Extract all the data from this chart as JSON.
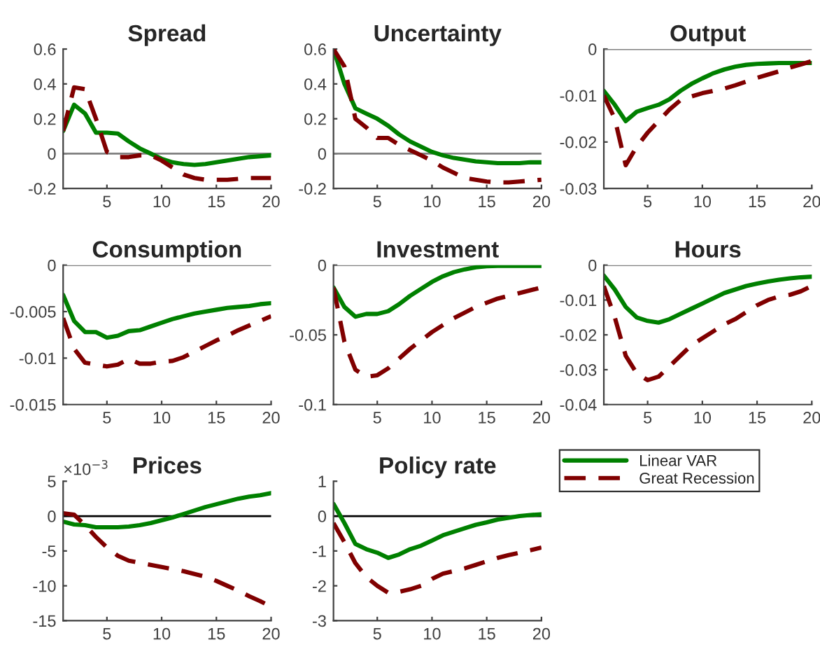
{
  "chart_data": [
    {
      "type": "line",
      "title": "Spread",
      "x": [
        1,
        2,
        3,
        4,
        5,
        6,
        7,
        8,
        9,
        10,
        11,
        12,
        13,
        14,
        15,
        16,
        17,
        18,
        19,
        20
      ],
      "xlim": [
        1,
        20
      ],
      "xticks": [
        5,
        10,
        15,
        20
      ],
      "ylim": [
        -0.2,
        0.6
      ],
      "yticks": [
        -0.2,
        0,
        0.2,
        0.4,
        0.6
      ],
      "ref_lines": [
        {
          "axis": "y",
          "value": 0,
          "color": "#808080"
        }
      ],
      "series": [
        {
          "color": "#008000",
          "line_style": "solid",
          "values": [
            0.13,
            0.28,
            0.23,
            0.12,
            0.12,
            0.115,
            0.07,
            0.03,
            0.0,
            -0.03,
            -0.05,
            -0.06,
            -0.065,
            -0.06,
            -0.05,
            -0.04,
            -0.03,
            -0.02,
            -0.015,
            -0.01
          ]
        },
        {
          "color": "#800000",
          "line_style": "dashed",
          "values": [
            0.13,
            0.38,
            0.37,
            0.2,
            0.01,
            -0.02,
            -0.02,
            -0.01,
            -0.01,
            -0.04,
            -0.08,
            -0.12,
            -0.14,
            -0.15,
            -0.15,
            -0.15,
            -0.145,
            -0.14,
            -0.14,
            -0.14
          ]
        }
      ]
    },
    {
      "type": "line",
      "title": "Uncertainty",
      "x": [
        1,
        2,
        3,
        4,
        5,
        6,
        7,
        8,
        9,
        10,
        11,
        12,
        13,
        14,
        15,
        16,
        17,
        18,
        19,
        20
      ],
      "xlim": [
        1,
        20
      ],
      "xticks": [
        5,
        10,
        15,
        20
      ],
      "ylim": [
        -0.2,
        0.6
      ],
      "yticks": [
        -0.2,
        0,
        0.2,
        0.4,
        0.6
      ],
      "ref_lines": [
        {
          "axis": "y",
          "value": 0,
          "color": "#808080"
        }
      ],
      "series": [
        {
          "color": "#008000",
          "line_style": "solid",
          "values": [
            0.6,
            0.4,
            0.26,
            0.23,
            0.2,
            0.16,
            0.11,
            0.07,
            0.04,
            0.01,
            -0.01,
            -0.025,
            -0.035,
            -0.045,
            -0.05,
            -0.055,
            -0.055,
            -0.055,
            -0.05,
            -0.05
          ]
        },
        {
          "color": "#800000",
          "line_style": "dashed",
          "values": [
            0.6,
            0.5,
            0.2,
            0.15,
            0.09,
            0.09,
            0.05,
            0.02,
            -0.01,
            -0.04,
            -0.08,
            -0.11,
            -0.14,
            -0.15,
            -0.16,
            -0.165,
            -0.165,
            -0.16,
            -0.155,
            -0.15
          ]
        }
      ]
    },
    {
      "type": "line",
      "title": "Output",
      "x": [
        1,
        2,
        3,
        4,
        5,
        6,
        7,
        8,
        9,
        10,
        11,
        12,
        13,
        14,
        15,
        16,
        17,
        18,
        19,
        20
      ],
      "xlim": [
        1,
        20
      ],
      "xticks": [
        5,
        10,
        15,
        20
      ],
      "ylim": [
        -0.03,
        0
      ],
      "yticks": [
        -0.03,
        -0.02,
        -0.01,
        0
      ],
      "ref_lines": [
        {
          "axis": "y",
          "value": 0,
          "color": "#808080"
        }
      ],
      "series": [
        {
          "color": "#008000",
          "line_style": "solid",
          "values": [
            -0.009,
            -0.012,
            -0.0155,
            -0.0135,
            -0.0127,
            -0.012,
            -0.0108,
            -0.009,
            -0.0075,
            -0.0063,
            -0.0052,
            -0.0044,
            -0.0038,
            -0.0034,
            -0.0032,
            -0.0031,
            -0.003,
            -0.003,
            -0.003,
            -0.003
          ]
        },
        {
          "color": "#800000",
          "line_style": "dashed",
          "values": [
            -0.01,
            -0.015,
            -0.025,
            -0.021,
            -0.018,
            -0.0155,
            -0.013,
            -0.011,
            -0.0102,
            -0.0095,
            -0.009,
            -0.0085,
            -0.0078,
            -0.007,
            -0.0062,
            -0.0055,
            -0.0048,
            -0.004,
            -0.0033,
            -0.0026
          ]
        }
      ]
    },
    {
      "type": "line",
      "title": "Consumption",
      "x": [
        1,
        2,
        3,
        4,
        5,
        6,
        7,
        8,
        9,
        10,
        11,
        12,
        13,
        14,
        15,
        16,
        17,
        18,
        19,
        20
      ],
      "xlim": [
        1,
        20
      ],
      "xticks": [
        5,
        10,
        15,
        20
      ],
      "ylim": [
        -0.015,
        0
      ],
      "yticks": [
        -0.015,
        -0.01,
        -0.005,
        0
      ],
      "ref_lines": [
        {
          "axis": "y",
          "value": 0,
          "color": "#808080"
        }
      ],
      "series": [
        {
          "color": "#008000",
          "line_style": "solid",
          "values": [
            -0.0032,
            -0.006,
            -0.0072,
            -0.0072,
            -0.0078,
            -0.0076,
            -0.0071,
            -0.007,
            -0.0066,
            -0.0062,
            -0.0058,
            -0.0055,
            -0.0052,
            -0.005,
            -0.0048,
            -0.0046,
            -0.0045,
            -0.0044,
            -0.0042,
            -0.0041
          ]
        },
        {
          "color": "#800000",
          "line_style": "dashed",
          "values": [
            -0.0057,
            -0.009,
            -0.0105,
            -0.0107,
            -0.0109,
            -0.0107,
            -0.0101,
            -0.0106,
            -0.0106,
            -0.0104,
            -0.0103,
            -0.0099,
            -0.0093,
            -0.0087,
            -0.0081,
            -0.0076,
            -0.007,
            -0.0065,
            -0.006,
            -0.0055
          ]
        }
      ]
    },
    {
      "type": "line",
      "title": "Investment",
      "x": [
        1,
        2,
        3,
        4,
        5,
        6,
        7,
        8,
        9,
        10,
        11,
        12,
        13,
        14,
        15,
        16,
        17,
        18,
        19,
        20
      ],
      "xlim": [
        1,
        20
      ],
      "xticks": [
        5,
        10,
        15,
        20
      ],
      "ylim": [
        -0.1,
        0
      ],
      "yticks": [
        -0.1,
        -0.05,
        0
      ],
      "ref_lines": [
        {
          "axis": "y",
          "value": 0,
          "color": "#808080"
        }
      ],
      "series": [
        {
          "color": "#008000",
          "line_style": "solid",
          "values": [
            -0.016,
            -0.03,
            -0.037,
            -0.035,
            -0.035,
            -0.033,
            -0.028,
            -0.022,
            -0.017,
            -0.012,
            -0.008,
            -0.005,
            -0.003,
            -0.0015,
            -0.0008,
            -0.0005,
            -0.0005,
            -0.0005,
            -0.0005,
            -0.0005
          ]
        },
        {
          "color": "#800000",
          "line_style": "dashed",
          "values": [
            -0.016,
            -0.055,
            -0.075,
            -0.08,
            -0.079,
            -0.074,
            -0.067,
            -0.06,
            -0.054,
            -0.048,
            -0.043,
            -0.038,
            -0.034,
            -0.03,
            -0.027,
            -0.024,
            -0.022,
            -0.02,
            -0.018,
            -0.016
          ]
        }
      ]
    },
    {
      "type": "line",
      "title": "Hours",
      "x": [
        1,
        2,
        3,
        4,
        5,
        6,
        7,
        8,
        9,
        10,
        11,
        12,
        13,
        14,
        15,
        16,
        17,
        18,
        19,
        20
      ],
      "xlim": [
        1,
        20
      ],
      "xticks": [
        5,
        10,
        15,
        20
      ],
      "ylim": [
        -0.04,
        0
      ],
      "yticks": [
        -0.04,
        -0.03,
        -0.02,
        -0.01,
        0
      ],
      "ref_lines": [
        {
          "axis": "y",
          "value": 0,
          "color": "#808080"
        }
      ],
      "series": [
        {
          "color": "#008000",
          "line_style": "solid",
          "values": [
            -0.003,
            -0.007,
            -0.012,
            -0.015,
            -0.016,
            -0.0165,
            -0.0155,
            -0.014,
            -0.0125,
            -0.011,
            -0.0095,
            -0.008,
            -0.007,
            -0.006,
            -0.0053,
            -0.0047,
            -0.0042,
            -0.0038,
            -0.0035,
            -0.0033
          ]
        },
        {
          "color": "#800000",
          "line_style": "dashed",
          "values": [
            -0.006,
            -0.015,
            -0.026,
            -0.031,
            -0.033,
            -0.032,
            -0.029,
            -0.026,
            -0.023,
            -0.021,
            -0.019,
            -0.017,
            -0.0155,
            -0.0135,
            -0.0115,
            -0.01,
            -0.009,
            -0.0085,
            -0.0075,
            -0.006
          ]
        }
      ]
    },
    {
      "type": "line",
      "title": "Prices",
      "annotations": [
        "×10$^{−3}$"
      ],
      "x": [
        1,
        2,
        3,
        4,
        5,
        6,
        7,
        8,
        9,
        10,
        11,
        12,
        13,
        14,
        15,
        16,
        17,
        18,
        19,
        20
      ],
      "xlim": [
        1,
        20
      ],
      "xticks": [
        5,
        10,
        15,
        20
      ],
      "ylim": [
        -15,
        5
      ],
      "yticks": [
        -15,
        -10,
        -5,
        0,
        5
      ],
      "ref_lines": [
        {
          "axis": "y",
          "value": 0,
          "color": "#000000"
        }
      ],
      "series": [
        {
          "color": "#008000",
          "line_style": "solid",
          "values": [
            -0.8,
            -1.2,
            -1.3,
            -1.6,
            -1.6,
            -1.6,
            -1.5,
            -1.3,
            -1.0,
            -0.6,
            -0.2,
            0.3,
            0.8,
            1.3,
            1.7,
            2.1,
            2.5,
            2.8,
            3.0,
            3.3
          ]
        },
        {
          "color": "#800000",
          "line_style": "dashed",
          "values": [
            0.4,
            0.2,
            -1.3,
            -3.0,
            -4.5,
            -5.7,
            -6.4,
            -6.7,
            -7.0,
            -7.3,
            -7.6,
            -7.9,
            -8.3,
            -8.7,
            -9.3,
            -10.0,
            -10.7,
            -11.5,
            -12.2,
            -13.0
          ]
        }
      ]
    },
    {
      "type": "line",
      "title": "Policy rate",
      "legend": "top right",
      "x": [
        1,
        2,
        3,
        4,
        5,
        6,
        7,
        8,
        9,
        10,
        11,
        12,
        13,
        14,
        15,
        16,
        17,
        18,
        19,
        20
      ],
      "xlim": [
        1,
        20
      ],
      "xticks": [
        5,
        10,
        15,
        20
      ],
      "ylim": [
        -3,
        1
      ],
      "yticks": [
        -3,
        -2,
        -1,
        0,
        1
      ],
      "ref_lines": [
        {
          "axis": "y",
          "value": 0,
          "color": "#000000"
        }
      ],
      "series": [
        {
          "name": "Linear VAR",
          "color": "#008000",
          "line_style": "solid",
          "values": [
            0.35,
            -0.2,
            -0.8,
            -0.95,
            -1.05,
            -1.2,
            -1.1,
            -0.95,
            -0.85,
            -0.7,
            -0.55,
            -0.45,
            -0.35,
            -0.25,
            -0.18,
            -0.1,
            -0.05,
            0.0,
            0.03,
            0.05
          ]
        },
        {
          "name": "Great Recession",
          "color": "#800000",
          "line_style": "dashed",
          "values": [
            -0.2,
            -0.75,
            -1.35,
            -1.75,
            -2.0,
            -2.2,
            -2.17,
            -2.1,
            -2.0,
            -1.8,
            -1.65,
            -1.58,
            -1.5,
            -1.4,
            -1.3,
            -1.2,
            -1.12,
            -1.05,
            -0.98,
            -0.9
          ]
        }
      ]
    }
  ]
}
